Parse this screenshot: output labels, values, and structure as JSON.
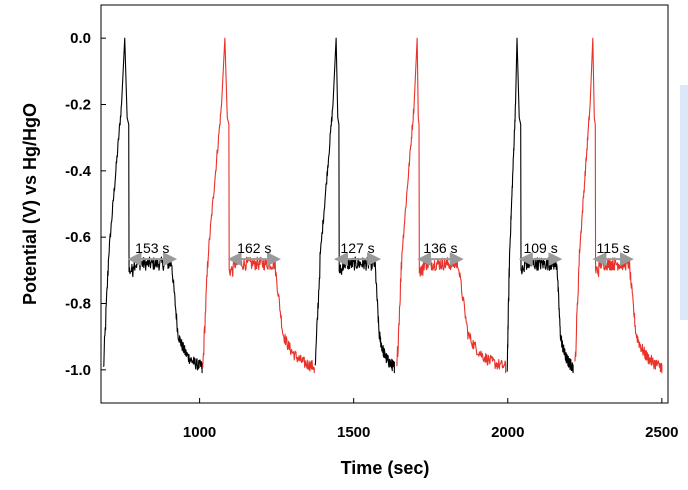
{
  "chart_data": {
    "type": "line",
    "xlabel": "Time (sec)",
    "ylabel": "Potential (V) vs Hg/HgO",
    "xlim": [
      680,
      2520
    ],
    "ylim": [
      -1.1,
      0.1
    ],
    "x_ticks": [
      "1000",
      "1500",
      "2000",
      "2500"
    ],
    "x_tick_values": [
      1000,
      1500,
      2000,
      2500
    ],
    "y_ticks": [
      "0.0",
      "-0.2",
      "-0.4",
      "-0.6",
      "-0.8",
      "-1.0"
    ],
    "y_tick_values": [
      0.0,
      -0.2,
      -0.4,
      -0.6,
      -0.8,
      -1.0
    ],
    "grid": false,
    "colors": {
      "black_series": "#000000",
      "red_series": "#e8322a",
      "arrow": "#9a9a9a"
    },
    "cycles": [
      {
        "color": "black",
        "t_start": 688,
        "t_peak": 757,
        "t_drop": 770,
        "plateau_end": 910,
        "t_end": 1008
      },
      {
        "color": "red",
        "t_start": 1010,
        "t_peak": 1082,
        "t_drop": 1095,
        "plateau_end": 1245,
        "t_end": 1372
      },
      {
        "color": "black",
        "t_start": 1375,
        "t_peak": 1443,
        "t_drop": 1452,
        "plateau_end": 1570,
        "t_end": 1632
      },
      {
        "color": "red",
        "t_start": 1640,
        "t_peak": 1706,
        "t_drop": 1712,
        "plateau_end": 1840,
        "t_end": 1993
      },
      {
        "color": "black",
        "t_start": 1998,
        "t_peak": 2030,
        "t_drop": 2042,
        "plateau_end": 2160,
        "t_end": 2212
      },
      {
        "color": "red",
        "t_start": 2218,
        "t_peak": 2276,
        "t_drop": 2284,
        "plateau_end": 2395,
        "t_end": 2500
      }
    ],
    "annotations": [
      {
        "label": "153 s",
        "x_from": 775,
        "x_to": 918,
        "y": -0.63
      },
      {
        "label": "162 s",
        "x_from": 1100,
        "x_to": 1255,
        "y": -0.63
      },
      {
        "label": "127 s",
        "x_from": 1445,
        "x_to": 1580,
        "y": -0.63
      },
      {
        "label": "136 s",
        "x_from": 1715,
        "x_to": 1848,
        "y": -0.63
      },
      {
        "label": "109 s",
        "x_from": 2045,
        "x_to": 2168,
        "y": -0.63
      },
      {
        "label": "115 s",
        "x_from": 2284,
        "x_to": 2400,
        "y": -0.63
      }
    ]
  }
}
